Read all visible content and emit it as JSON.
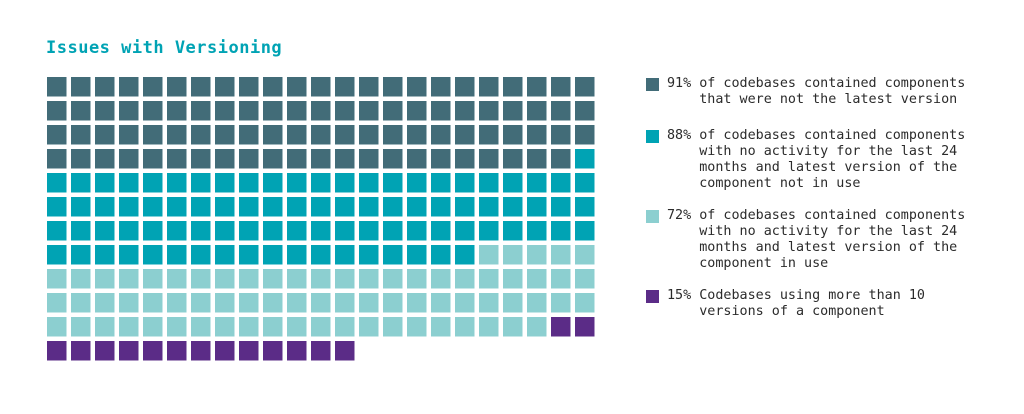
{
  "chart_data": {
    "type": "waffle",
    "title": "Issues with Versioning",
    "series": [
      {
        "name": "91%",
        "percent": 91,
        "color": "#426c78",
        "label": "of codebases contained components\nthat were not the latest version"
      },
      {
        "name": "88%",
        "percent": 88,
        "color": "#00a3b4",
        "label": "of codebases contained components\nwith no activity for the last 24\nmonths and latest version of the\ncomponent not in use"
      },
      {
        "name": "72%",
        "percent": 72,
        "color": "#8ccfd0",
        "label": "of codebases contained components\nwith no activity for the last 24\nmonths and latest version of the\ncomponent in use"
      },
      {
        "name": "15%",
        "percent": 15,
        "color": "#5b2c87",
        "label": "Codebases using more than 10\nversions of a component"
      }
    ],
    "legend_position": "right"
  }
}
